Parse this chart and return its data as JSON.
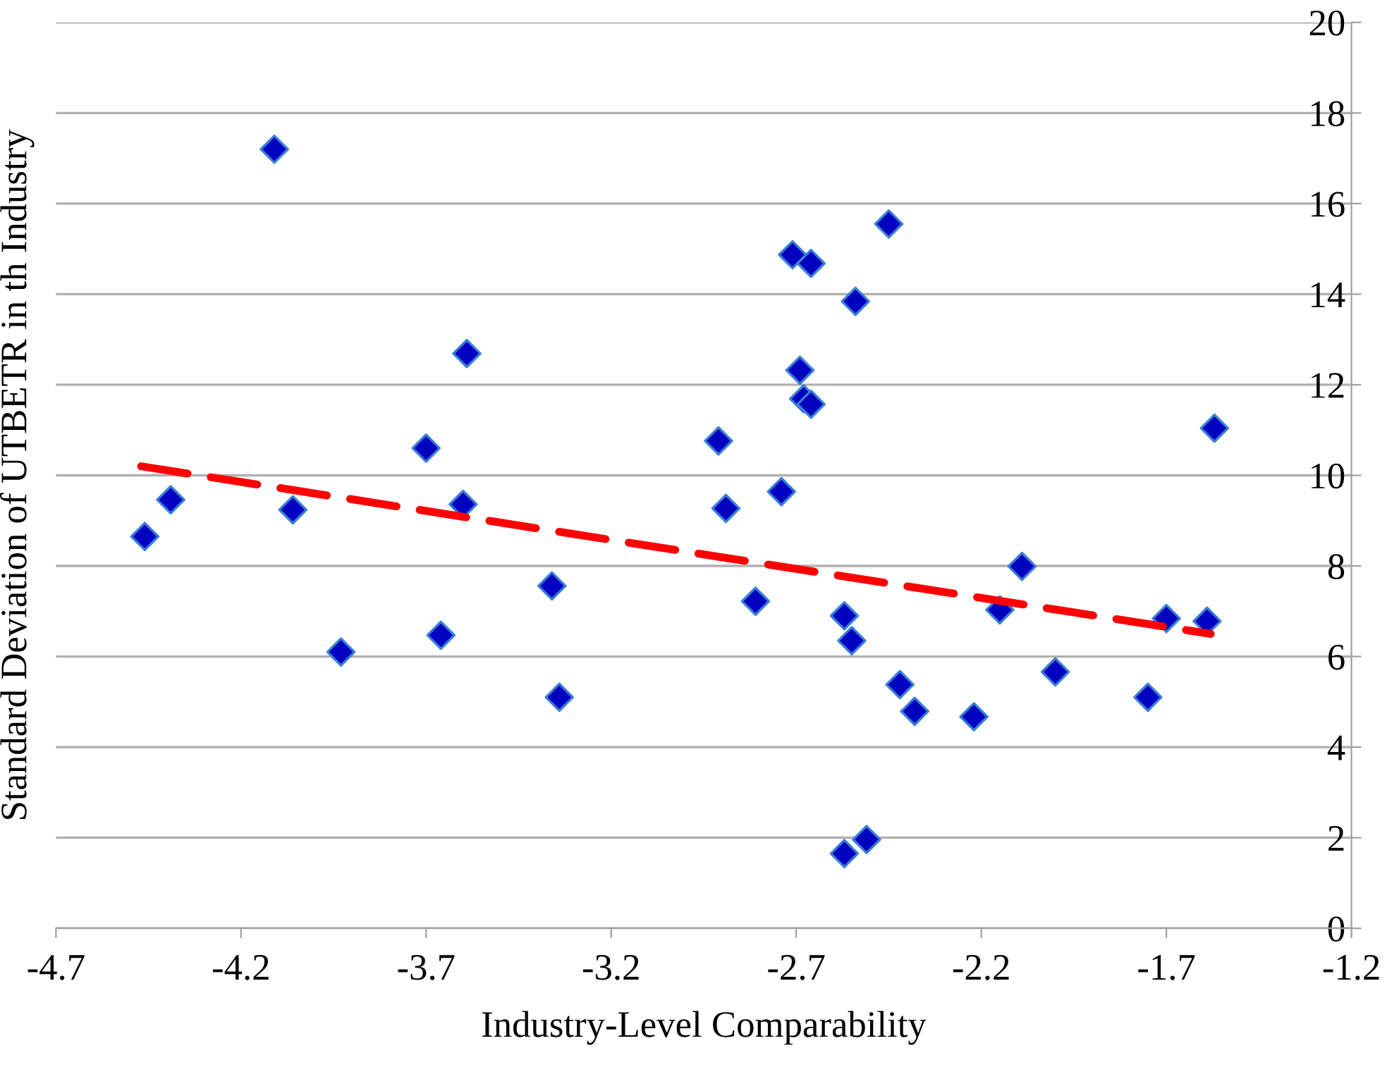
{
  "chart_data": {
    "type": "scatter",
    "xlabel": "Industry-Level Comparability",
    "ylabel": "Standard Deviation of UTBETR in th Industry",
    "xlim": [
      -4.7,
      -1.2
    ],
    "xticks": [
      -4.7,
      -4.2,
      -3.7,
      -3.2,
      -2.7,
      -2.2,
      -1.7,
      -1.2
    ],
    "ylim": [
      0,
      20
    ],
    "yticks": [
      0,
      2,
      4,
      6,
      8,
      10,
      12,
      14,
      16,
      18,
      20
    ],
    "grid": "y",
    "marker": "diamond",
    "series": [
      {
        "color": "#0000c0",
        "x": [
          -4.46,
          -4.39,
          -4.11,
          -4.06,
          -3.93,
          -3.7,
          -3.66,
          -3.59,
          -3.6,
          -3.36,
          -3.34,
          -2.91,
          -2.89,
          -2.81,
          -2.74,
          -2.71,
          -2.66,
          -2.69,
          -2.68,
          -2.66,
          -2.57,
          -2.55,
          -2.57,
          -2.51,
          -2.54,
          -2.45,
          -2.42,
          -2.38,
          -2.22,
          -2.15,
          -2.09,
          -2.0,
          -1.75,
          -1.7,
          -1.59,
          -1.57
        ],
        "values": [
          8.65,
          9.46,
          17.2,
          9.24,
          6.1,
          10.6,
          6.47,
          12.69,
          9.36,
          7.56,
          5.1,
          10.76,
          9.27,
          7.22,
          9.64,
          14.87,
          14.68,
          12.32,
          11.69,
          11.57,
          6.9,
          6.35,
          1.65,
          1.96,
          13.84,
          15.55,
          5.38,
          4.79,
          4.67,
          7.03,
          7.99,
          5.66,
          5.1,
          6.84,
          6.78,
          11.04
        ]
      },
      {
        "type": "line",
        "color": "#ff0000",
        "line_style": "dashed",
        "marker": "none",
        "x": [
          -4.47,
          -1.58
        ],
        "values": [
          10.2,
          6.5
        ]
      }
    ]
  }
}
